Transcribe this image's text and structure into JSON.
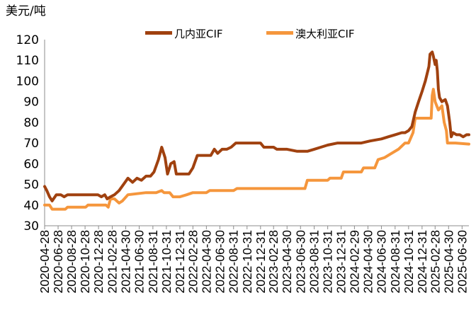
{
  "chart_data": {
    "type": "line",
    "ylabel": "美元/吨",
    "ylim": [
      30,
      120
    ],
    "yticks": [
      30,
      40,
      50,
      60,
      70,
      80,
      90,
      100,
      110,
      120
    ],
    "x_ticks": [
      "2020-04-28",
      "2020-06-28",
      "2020-08-28",
      "2020-10-28",
      "2020-12-28",
      "2021-02-28",
      "2021-04-30",
      "2021-06-30",
      "2021-08-31",
      "2021-10-31",
      "2021-12-31",
      "2022-02-28",
      "2022-04-30",
      "2022-06-30",
      "2022-08-31",
      "2022-10-31",
      "2022-12-31",
      "2023-02-28",
      "2023-04-30",
      "2023-06-30",
      "2023-08-31",
      "2023-10-31",
      "2023-12-31",
      "2024-02-29",
      "2024-04-30",
      "2024-06-30",
      "2024-08-31",
      "2024-10-31",
      "2024-12-31",
      "2025-02-28",
      "2025-04-30",
      "2025-06-30"
    ],
    "legend_position": "top",
    "grid": false,
    "colors": {
      "guinea": "#a0410f",
      "australia": "#f5963c"
    },
    "series": [
      {
        "name": "几内亚CIF",
        "color_key": "guinea",
        "points": [
          [
            "2020-04-28",
            49
          ],
          [
            "2020-05-08",
            47
          ],
          [
            "2020-05-20",
            44
          ],
          [
            "2020-06-01",
            42
          ],
          [
            "2020-06-20",
            45
          ],
          [
            "2020-07-10",
            45
          ],
          [
            "2020-07-25",
            44
          ],
          [
            "2020-08-10",
            45
          ],
          [
            "2020-09-15",
            45
          ],
          [
            "2020-10-20",
            45
          ],
          [
            "2020-11-25",
            45
          ],
          [
            "2020-12-25",
            45
          ],
          [
            "2021-01-10",
            44
          ],
          [
            "2021-01-25",
            45
          ],
          [
            "2021-02-05",
            43
          ],
          [
            "2021-02-20",
            44
          ],
          [
            "2021-03-10",
            45
          ],
          [
            "2021-03-31",
            47
          ],
          [
            "2021-04-20",
            50
          ],
          [
            "2021-05-10",
            53
          ],
          [
            "2021-05-31",
            51
          ],
          [
            "2021-06-20",
            53
          ],
          [
            "2021-07-10",
            52
          ],
          [
            "2021-07-31",
            54
          ],
          [
            "2021-08-20",
            54
          ],
          [
            "2021-09-05",
            56
          ],
          [
            "2021-09-25",
            62
          ],
          [
            "2021-10-10",
            68
          ],
          [
            "2021-10-25",
            63
          ],
          [
            "2021-11-05",
            55
          ],
          [
            "2021-11-20",
            60
          ],
          [
            "2021-12-05",
            61
          ],
          [
            "2021-12-15",
            55
          ],
          [
            "2022-01-15",
            55
          ],
          [
            "2022-02-10",
            55
          ],
          [
            "2022-02-28",
            58
          ],
          [
            "2022-03-20",
            64
          ],
          [
            "2022-04-15",
            64
          ],
          [
            "2022-04-30",
            64
          ],
          [
            "2022-05-20",
            64
          ],
          [
            "2022-06-05",
            67
          ],
          [
            "2022-06-20",
            65
          ],
          [
            "2022-07-10",
            67
          ],
          [
            "2022-07-31",
            67
          ],
          [
            "2022-08-20",
            68
          ],
          [
            "2022-09-10",
            70
          ],
          [
            "2022-10-31",
            70
          ],
          [
            "2022-12-31",
            70
          ],
          [
            "2023-01-15",
            68
          ],
          [
            "2023-02-28",
            68
          ],
          [
            "2023-03-15",
            67
          ],
          [
            "2023-04-30",
            67
          ],
          [
            "2023-06-15",
            66
          ],
          [
            "2023-07-31",
            66
          ],
          [
            "2023-08-31",
            67
          ],
          [
            "2023-09-30",
            68
          ],
          [
            "2023-10-31",
            69
          ],
          [
            "2023-12-15",
            70
          ],
          [
            "2024-01-31",
            70
          ],
          [
            "2024-02-29",
            70
          ],
          [
            "2024-03-31",
            70
          ],
          [
            "2024-05-10",
            71
          ],
          [
            "2024-06-30",
            72
          ],
          [
            "2024-07-31",
            73
          ],
          [
            "2024-08-31",
            74
          ],
          [
            "2024-09-30",
            75
          ],
          [
            "2024-10-15",
            75
          ],
          [
            "2024-10-31",
            76
          ],
          [
            "2024-11-15",
            78
          ],
          [
            "2024-11-30",
            85
          ],
          [
            "2024-12-15",
            90
          ],
          [
            "2024-12-31",
            95
          ],
          [
            "2025-01-15",
            100
          ],
          [
            "2025-01-31",
            107
          ],
          [
            "2025-02-05",
            113
          ],
          [
            "2025-02-15",
            114
          ],
          [
            "2025-02-20",
            112
          ],
          [
            "2025-02-28",
            108
          ],
          [
            "2025-03-05",
            110
          ],
          [
            "2025-03-10",
            105
          ],
          [
            "2025-03-15",
            96
          ],
          [
            "2025-03-20",
            92
          ],
          [
            "2025-03-31",
            90
          ],
          [
            "2025-04-15",
            91
          ],
          [
            "2025-04-25",
            88
          ],
          [
            "2025-05-05",
            80
          ],
          [
            "2025-05-12",
            73
          ],
          [
            "2025-05-20",
            75
          ],
          [
            "2025-06-05",
            74
          ],
          [
            "2025-06-20",
            74
          ],
          [
            "2025-07-05",
            73
          ],
          [
            "2025-07-20",
            74
          ],
          [
            "2025-07-31",
            74
          ]
        ]
      },
      {
        "name": "澳大利亚CIF",
        "color_key": "australia",
        "points": [
          [
            "2020-04-28",
            40
          ],
          [
            "2020-05-20",
            40
          ],
          [
            "2020-06-01",
            38
          ],
          [
            "2020-07-31",
            38
          ],
          [
            "2020-08-10",
            39
          ],
          [
            "2020-10-31",
            39
          ],
          [
            "2020-11-10",
            40
          ],
          [
            "2020-12-31",
            40
          ],
          [
            "2021-01-31",
            40
          ],
          [
            "2021-02-10",
            39
          ],
          [
            "2021-02-20",
            43
          ],
          [
            "2021-03-10",
            43
          ],
          [
            "2021-03-31",
            41
          ],
          [
            "2021-04-15",
            42
          ],
          [
            "2021-05-10",
            45
          ],
          [
            "2021-07-31",
            46
          ],
          [
            "2021-09-15",
            46
          ],
          [
            "2021-10-10",
            47
          ],
          [
            "2021-10-20",
            46
          ],
          [
            "2021-11-15",
            46
          ],
          [
            "2021-11-30",
            44
          ],
          [
            "2021-12-31",
            44
          ],
          [
            "2022-01-31",
            45
          ],
          [
            "2022-02-28",
            46
          ],
          [
            "2022-04-30",
            46
          ],
          [
            "2022-05-15",
            47
          ],
          [
            "2022-08-31",
            47
          ],
          [
            "2022-09-15",
            48
          ],
          [
            "2022-12-31",
            48
          ],
          [
            "2023-03-31",
            48
          ],
          [
            "2023-06-30",
            48
          ],
          [
            "2023-07-20",
            48
          ],
          [
            "2023-07-31",
            52
          ],
          [
            "2023-10-31",
            52
          ],
          [
            "2023-11-10",
            53
          ],
          [
            "2023-12-31",
            53
          ],
          [
            "2024-01-10",
            56
          ],
          [
            "2024-03-31",
            56
          ],
          [
            "2024-04-10",
            58
          ],
          [
            "2024-05-31",
            58
          ],
          [
            "2024-06-15",
            62
          ],
          [
            "2024-07-15",
            63
          ],
          [
            "2024-08-15",
            65
          ],
          [
            "2024-09-15",
            67
          ],
          [
            "2024-10-15",
            70
          ],
          [
            "2024-10-31",
            70
          ],
          [
            "2024-11-20",
            75
          ],
          [
            "2024-11-30",
            82
          ],
          [
            "2025-01-31",
            82
          ],
          [
            "2025-02-10",
            82
          ],
          [
            "2025-02-15",
            93
          ],
          [
            "2025-02-20",
            96
          ],
          [
            "2025-02-28",
            90
          ],
          [
            "2025-03-15",
            86
          ],
          [
            "2025-03-31",
            88
          ],
          [
            "2025-04-10",
            80
          ],
          [
            "2025-04-20",
            76
          ],
          [
            "2025-04-25",
            70
          ],
          [
            "2025-05-31",
            70
          ],
          [
            "2025-07-31",
            69.5
          ]
        ]
      }
    ]
  }
}
